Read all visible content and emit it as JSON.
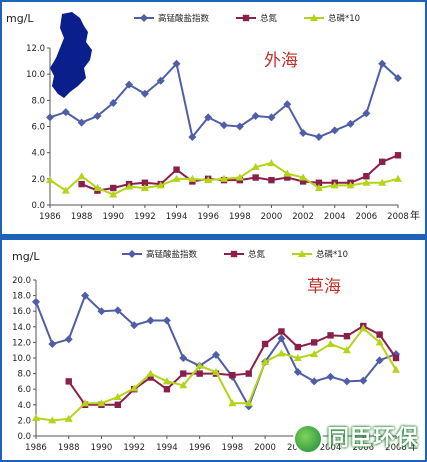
{
  "chart_data": [
    {
      "type": "line",
      "unit_label": "mg/L",
      "annotation": "外海",
      "x_suffix": "年",
      "ylim": [
        0,
        12
      ],
      "yticks": [
        "0.0",
        "2.0",
        "4.0",
        "6.0",
        "8.0",
        "10.0",
        "12.0"
      ],
      "xticks": [
        "1986",
        "1988",
        "1990",
        "1992",
        "1994",
        "1996",
        "1998",
        "2000",
        "2002",
        "2004",
        "2006",
        "2008"
      ],
      "x": [
        1986,
        1987,
        1988,
        1989,
        1990,
        1991,
        1992,
        1993,
        1994,
        1995,
        1996,
        1997,
        1998,
        1999,
        2000,
        2001,
        2002,
        2003,
        2004,
        2005,
        2006,
        2007,
        2008
      ],
      "legend_position": "top",
      "series": [
        {
          "name": "高锰酸盐指数",
          "color": "#4f5ea6",
          "marker": "diamond",
          "values": [
            6.7,
            7.1,
            6.3,
            6.8,
            7.8,
            9.2,
            8.5,
            9.5,
            10.8,
            5.2,
            6.7,
            6.1,
            6.0,
            6.8,
            6.7,
            7.7,
            5.5,
            5.2,
            5.7,
            6.2,
            7.0,
            10.8,
            9.7
          ]
        },
        {
          "name": "总氮",
          "color": "#8b1f4b",
          "marker": "square",
          "values": [
            null,
            null,
            1.6,
            1.1,
            1.3,
            1.6,
            1.7,
            1.6,
            2.7,
            1.8,
            2.0,
            1.9,
            1.9,
            2.1,
            1.9,
            2.1,
            1.8,
            1.7,
            1.7,
            1.7,
            2.2,
            3.3,
            3.8
          ]
        },
        {
          "name": "总磷*10",
          "color": "#b5d317",
          "marker": "triangle",
          "values": [
            1.9,
            1.1,
            2.2,
            1.3,
            0.8,
            1.4,
            1.3,
            1.5,
            2.0,
            2.0,
            1.9,
            2.0,
            2.1,
            2.9,
            3.2,
            2.4,
            2.1,
            1.3,
            1.5,
            1.5,
            1.7,
            1.7,
            2.0
          ]
        }
      ]
    },
    {
      "type": "line",
      "unit_label": "mg/L",
      "annotation": "草海",
      "x_suffix": "年",
      "ylim": [
        0,
        20
      ],
      "yticks": [
        "0.0",
        "2.0",
        "4.0",
        "6.0",
        "8.0",
        "10.0",
        "12.0",
        "14.0",
        "16.0",
        "18.0",
        "20.0"
      ],
      "xticks": [
        "1986",
        "1988",
        "1990",
        "1992",
        "1994",
        "1996",
        "1998",
        "2000",
        "2002",
        "2004",
        "2006",
        "2008"
      ],
      "x": [
        1986,
        1987,
        1988,
        1989,
        1990,
        1991,
        1992,
        1993,
        1994,
        1995,
        1996,
        1997,
        1998,
        1999,
        2000,
        2001,
        2002,
        2003,
        2004,
        2005,
        2006,
        2007,
        2008
      ],
      "legend_position": "top",
      "series": [
        {
          "name": "高锰酸盐指数",
          "color": "#4f5ea6",
          "marker": "diamond",
          "values": [
            17.2,
            11.8,
            12.4,
            18.0,
            16.0,
            16.1,
            14.2,
            14.8,
            14.8,
            10.0,
            9.0,
            10.4,
            7.6,
            3.8,
            9.5,
            12.5,
            8.2,
            7.0,
            7.6,
            7.0,
            7.1,
            9.7,
            10.5
          ]
        },
        {
          "name": "总氮",
          "color": "#8b1f4b",
          "marker": "square",
          "values": [
            null,
            null,
            7.0,
            4.0,
            4.0,
            4.0,
            6.0,
            7.5,
            6.0,
            8.0,
            8.0,
            8.0,
            7.8,
            8.0,
            11.8,
            13.4,
            11.4,
            12.0,
            12.9,
            12.8,
            14.1,
            13.0,
            10.0
          ]
        },
        {
          "name": "总磷*10",
          "color": "#b5d317",
          "marker": "triangle",
          "values": [
            2.3,
            2.0,
            2.2,
            4.2,
            4.2,
            5.0,
            6.1,
            8.0,
            7.0,
            6.5,
            9.0,
            8.2,
            4.2,
            4.2,
            9.5,
            10.6,
            10.0,
            10.5,
            11.8,
            11.0,
            13.8,
            12.0,
            8.5
          ]
        }
      ]
    }
  ],
  "watermark": "同臣环保",
  "map_label": "外海"
}
